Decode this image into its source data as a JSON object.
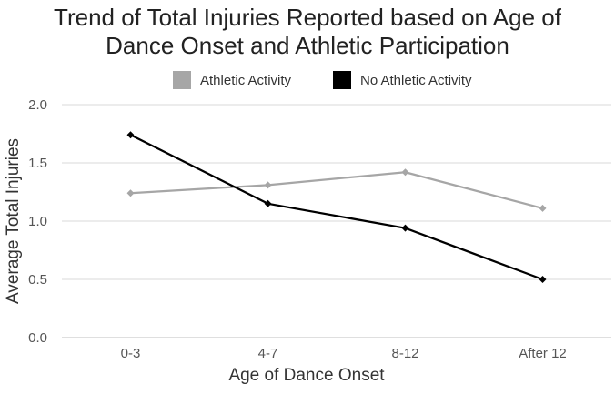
{
  "chart_data": {
    "type": "line",
    "title_lines": [
      "Trend of Total Injuries Reported based on Age of",
      "Dance Onset and Athletic Participation"
    ],
    "xlabel": "Age of Dance Onset",
    "ylabel": "Average Total Injuries",
    "categories": [
      "0-3",
      "4-7",
      "8-12",
      "After 12"
    ],
    "ylim": [
      0,
      2.0
    ],
    "yticks": [
      "0.0",
      "0.5",
      "1.0",
      "1.5",
      "2.0"
    ],
    "grid": true,
    "legend_position": "top",
    "series": [
      {
        "name": "Athletic Activity",
        "color": "#a6a6a6",
        "values": [
          1.24,
          1.31,
          1.42,
          1.11
        ]
      },
      {
        "name": "No Athletic Activity",
        "color": "#000000",
        "values": [
          1.74,
          1.15,
          0.94,
          0.5
        ]
      }
    ]
  }
}
